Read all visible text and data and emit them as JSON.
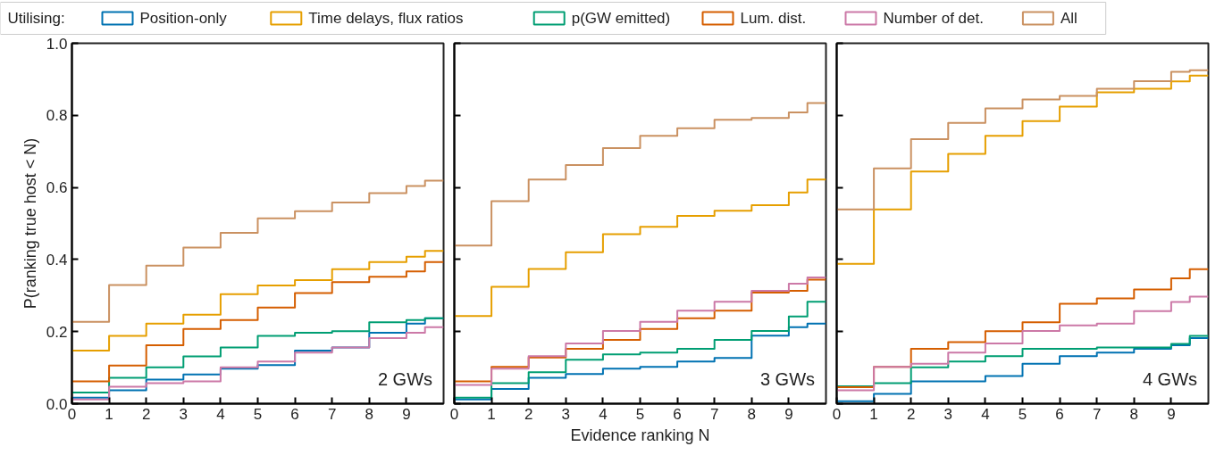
{
  "chart_data": [
    {
      "type": "step",
      "xlabel": null,
      "ylabel": "P(ranking true host < N)",
      "legend": "top",
      "legend_title": "Utilising:",
      "tick_labels": "xy",
      "xlim": [
        0,
        10
      ],
      "ylim": [
        0,
        1
      ],
      "xticks": [
        0,
        1,
        2,
        3,
        4,
        5,
        6,
        7,
        8,
        9
      ],
      "yticks": [
        {
          "value": 0,
          "label": "0.0"
        },
        {
          "value": 0.2,
          "label": "0.2"
        },
        {
          "value": 0.4,
          "label": "0.4"
        },
        {
          "value": 0.6,
          "label": "0.6"
        },
        {
          "value": 0.8,
          "label": "0.8"
        },
        {
          "value": 1,
          "label": "1.0"
        }
      ],
      "annotations": [
        "2 GWs"
      ],
      "x": [
        0,
        1,
        2,
        3,
        4,
        5,
        6,
        7,
        8,
        9,
        9.5,
        10
      ],
      "series": [
        {
          "name": "Position-only",
          "color": "#0072b2",
          "values": [
            0.017,
            0.037,
            0.067,
            0.081,
            0.097,
            0.107,
            0.147,
            0.156,
            0.197,
            0.222,
            0.237,
            0.237
          ]
        },
        {
          "name": "Time delays, flux ratios",
          "color": "#e69f00",
          "values": [
            0.147,
            0.188,
            0.222,
            0.247,
            0.304,
            0.328,
            0.343,
            0.373,
            0.393,
            0.408,
            0.424,
            0.424
          ]
        },
        {
          "name": "p(GW emitted)",
          "color": "#009e73",
          "values": [
            0.031,
            0.072,
            0.101,
            0.131,
            0.156,
            0.188,
            0.197,
            0.201,
            0.226,
            0.232,
            0.237,
            0.237
          ]
        },
        {
          "name": "Lum. dist.",
          "color": "#d55e00",
          "values": [
            0.062,
            0.106,
            0.162,
            0.207,
            0.232,
            0.267,
            0.307,
            0.337,
            0.352,
            0.367,
            0.393,
            0.393
          ]
        },
        {
          "name": "Number of det.",
          "color": "#cc79a7",
          "values": [
            0.012,
            0.047,
            0.057,
            0.062,
            0.101,
            0.117,
            0.142,
            0.156,
            0.182,
            0.197,
            0.212,
            0.212
          ]
        },
        {
          "name": "All",
          "color": "#ca9161",
          "values": [
            0.227,
            0.329,
            0.383,
            0.433,
            0.474,
            0.514,
            0.534,
            0.558,
            0.584,
            0.604,
            0.619,
            0.619
          ]
        }
      ]
    },
    {
      "type": "step",
      "xlabel": "Evidence ranking N",
      "tick_labels": "x",
      "xlim": [
        0,
        10
      ],
      "ylim": [
        0,
        1
      ],
      "xticks": [
        0,
        1,
        2,
        3,
        4,
        5,
        6,
        7,
        8,
        9
      ],
      "yticks": [
        {
          "value": 0,
          "label": null
        },
        {
          "value": 0.2,
          "label": null
        },
        {
          "value": 0.4,
          "label": null
        },
        {
          "value": 0.6,
          "label": null
        },
        {
          "value": 0.8,
          "label": null
        },
        {
          "value": 1,
          "label": null
        }
      ],
      "annotations": [
        "3 GWs"
      ],
      "x": [
        0,
        1,
        2,
        3,
        4,
        5,
        6,
        7,
        8,
        9,
        9.5,
        10
      ],
      "series": [
        {
          "color": "#0072b2",
          "values": [
            0.012,
            0.041,
            0.072,
            0.082,
            0.097,
            0.102,
            0.117,
            0.127,
            0.189,
            0.212,
            0.222,
            0.222
          ]
        },
        {
          "color": "#e69f00",
          "values": [
            0.243,
            0.324,
            0.374,
            0.42,
            0.47,
            0.491,
            0.521,
            0.535,
            0.551,
            0.586,
            0.622,
            0.622
          ]
        },
        {
          "color": "#009e73",
          "values": [
            0.017,
            0.057,
            0.087,
            0.122,
            0.137,
            0.142,
            0.152,
            0.177,
            0.202,
            0.242,
            0.283,
            0.283
          ]
        },
        {
          "color": "#d55e00",
          "values": [
            0.062,
            0.102,
            0.128,
            0.152,
            0.177,
            0.207,
            0.237,
            0.258,
            0.308,
            0.313,
            0.344,
            0.344
          ]
        },
        {
          "color": "#cc79a7",
          "values": [
            0.052,
            0.097,
            0.132,
            0.167,
            0.202,
            0.227,
            0.258,
            0.283,
            0.313,
            0.333,
            0.35,
            0.35
          ]
        },
        {
          "color": "#ca9161",
          "values": [
            0.439,
            0.562,
            0.622,
            0.662,
            0.709,
            0.743,
            0.764,
            0.788,
            0.793,
            0.808,
            0.834,
            0.834
          ]
        }
      ]
    },
    {
      "type": "step",
      "tick_labels": "x",
      "xlim": [
        0,
        10
      ],
      "ylim": [
        0,
        1
      ],
      "xticks": [
        0,
        1,
        2,
        3,
        4,
        5,
        6,
        7,
        8,
        9
      ],
      "yticks": [
        {
          "value": 0,
          "label": null
        },
        {
          "value": 0.2,
          "label": null
        },
        {
          "value": 0.4,
          "label": null
        },
        {
          "value": 0.6,
          "label": null
        },
        {
          "value": 0.8,
          "label": null
        },
        {
          "value": 1,
          "label": null
        }
      ],
      "annotations": [
        "4 GWs"
      ],
      "x": [
        0,
        1,
        2,
        3,
        4,
        5,
        6,
        7,
        8,
        9,
        9.5,
        10
      ],
      "series": [
        {
          "color": "#0072b2",
          "values": [
            0.007,
            0.027,
            0.062,
            0.062,
            0.077,
            0.111,
            0.132,
            0.142,
            0.152,
            0.162,
            0.182,
            0.182
          ]
        },
        {
          "color": "#e69f00",
          "values": [
            0.388,
            0.539,
            0.644,
            0.693,
            0.743,
            0.784,
            0.824,
            0.864,
            0.874,
            0.894,
            0.91,
            0.91
          ]
        },
        {
          "color": "#009e73",
          "values": [
            0.048,
            0.057,
            0.101,
            0.117,
            0.132,
            0.152,
            0.152,
            0.156,
            0.156,
            0.166,
            0.188,
            0.188
          ]
        },
        {
          "color": "#d55e00",
          "values": [
            0.046,
            0.102,
            0.152,
            0.171,
            0.201,
            0.226,
            0.277,
            0.292,
            0.317,
            0.348,
            0.373,
            0.373
          ]
        },
        {
          "color": "#cc79a7",
          "values": [
            0.037,
            0.102,
            0.111,
            0.142,
            0.167,
            0.202,
            0.217,
            0.222,
            0.257,
            0.282,
            0.297,
            0.297
          ]
        },
        {
          "color": "#ca9161",
          "values": [
            0.539,
            0.653,
            0.734,
            0.779,
            0.819,
            0.844,
            0.854,
            0.874,
            0.895,
            0.921,
            0.925,
            0.925
          ]
        }
      ]
    }
  ]
}
